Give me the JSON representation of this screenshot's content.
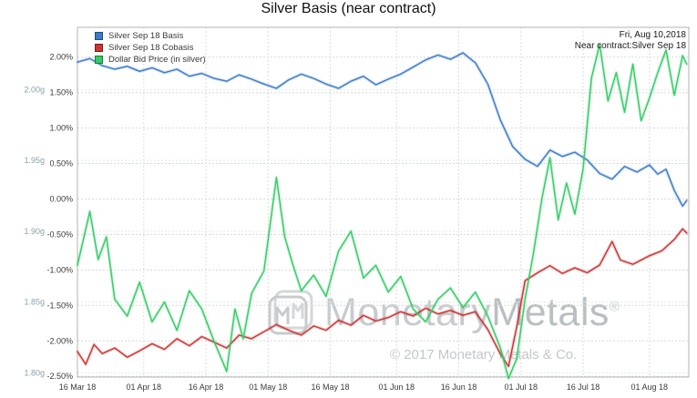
{
  "title": "Silver Basis (near contract)",
  "header": {
    "date": "Fri, Aug 10,2018",
    "contract": "Near contract:Silver Sep 18"
  },
  "watermark": {
    "brand_first": "Monetary",
    "brand_second": "Metals",
    "registered": "®",
    "copyright": "© 2017 Monetary Metals & Co."
  },
  "chart_data": {
    "type": "line",
    "title": "Silver Basis (near contract)",
    "x_unit": "days since 16 Mar 2018",
    "x_range": [
      0,
      147.5
    ],
    "grid": true,
    "legend_position": "top-left",
    "x_ticks": [
      {
        "day": 0,
        "label": "16 Mar 18"
      },
      {
        "day": 16,
        "label": "01 Apr 18"
      },
      {
        "day": 31,
        "label": "16 Apr 18"
      },
      {
        "day": 46,
        "label": "01 May 18"
      },
      {
        "day": 61,
        "label": "16 May 18"
      },
      {
        "day": 77,
        "label": "01 Jun 18"
      },
      {
        "day": 92,
        "label": "16 Jun 18"
      },
      {
        "day": 107,
        "label": "01 Jul 18"
      },
      {
        "day": 122,
        "label": "16 Jul 18"
      },
      {
        "day": 138,
        "label": "01 Aug 18"
      }
    ],
    "axes": {
      "percent": {
        "side": "left-inner",
        "format": "percent",
        "range": [
          -2.51,
          2.42
        ],
        "tick_values": [
          2.0,
          1.5,
          1.0,
          0.5,
          0.0,
          -0.5,
          -1.0,
          -1.5,
          -2.0,
          -2.5
        ],
        "label_color": "#3a3a3a",
        "grid_color": "#d9d9d9"
      },
      "grams": {
        "side": "left-outer",
        "format": "g",
        "range": [
          1.797,
          2.044
        ],
        "tick_values": [
          2.0,
          1.95,
          1.9,
          1.85,
          1.8
        ],
        "label_color": "#8aa2a6",
        "grid_color": "#e3e9e9"
      }
    },
    "series": [
      {
        "name": "Silver Sep 18 Basis",
        "color": "#3b7cc9",
        "axis": "percent",
        "points": [
          [
            0,
            1.93
          ],
          [
            3,
            1.98
          ],
          [
            6,
            1.88
          ],
          [
            9,
            1.83
          ],
          [
            12,
            1.87
          ],
          [
            15,
            1.8
          ],
          [
            18,
            1.85
          ],
          [
            21,
            1.78
          ],
          [
            24,
            1.83
          ],
          [
            27,
            1.73
          ],
          [
            30,
            1.77
          ],
          [
            33,
            1.7
          ],
          [
            36,
            1.66
          ],
          [
            39,
            1.75
          ],
          [
            42,
            1.69
          ],
          [
            45,
            1.62
          ],
          [
            48,
            1.56
          ],
          [
            51,
            1.68
          ],
          [
            54,
            1.76
          ],
          [
            57,
            1.7
          ],
          [
            60,
            1.62
          ],
          [
            63,
            1.56
          ],
          [
            66,
            1.66
          ],
          [
            69,
            1.73
          ],
          [
            72,
            1.61
          ],
          [
            75,
            1.69
          ],
          [
            78,
            1.76
          ],
          [
            81,
            1.86
          ],
          [
            84,
            1.96
          ],
          [
            87,
            2.03
          ],
          [
            90,
            1.97
          ],
          [
            93,
            2.06
          ],
          [
            96,
            1.92
          ],
          [
            99,
            1.62
          ],
          [
            102,
            1.12
          ],
          [
            105,
            0.74
          ],
          [
            108,
            0.56
          ],
          [
            111,
            0.46
          ],
          [
            114,
            0.69
          ],
          [
            117,
            0.6
          ],
          [
            120,
            0.66
          ],
          [
            123,
            0.55
          ],
          [
            126,
            0.36
          ],
          [
            129,
            0.28
          ],
          [
            132,
            0.46
          ],
          [
            135,
            0.38
          ],
          [
            138,
            0.48
          ],
          [
            140,
            0.35
          ],
          [
            142,
            0.42
          ],
          [
            144,
            0.12
          ],
          [
            146,
            -0.1
          ],
          [
            147,
            -0.02
          ]
        ]
      },
      {
        "name": "Silver Sep 18 Cobasis",
        "color": "#cc3332",
        "axis": "percent",
        "points": [
          [
            0,
            -2.15
          ],
          [
            2,
            -2.33
          ],
          [
            4,
            -2.05
          ],
          [
            6,
            -2.18
          ],
          [
            9,
            -2.1
          ],
          [
            12,
            -2.23
          ],
          [
            15,
            -2.14
          ],
          [
            18,
            -2.04
          ],
          [
            21,
            -2.12
          ],
          [
            24,
            -1.97
          ],
          [
            27,
            -2.07
          ],
          [
            30,
            -1.94
          ],
          [
            33,
            -2.02
          ],
          [
            36,
            -2.1
          ],
          [
            39,
            -1.92
          ],
          [
            42,
            -1.97
          ],
          [
            45,
            -1.87
          ],
          [
            48,
            -1.77
          ],
          [
            51,
            -1.85
          ],
          [
            54,
            -1.92
          ],
          [
            57,
            -1.79
          ],
          [
            60,
            -1.85
          ],
          [
            63,
            -1.71
          ],
          [
            66,
            -1.78
          ],
          [
            69,
            -1.64
          ],
          [
            72,
            -1.72
          ],
          [
            75,
            -1.67
          ],
          [
            78,
            -1.59
          ],
          [
            81,
            -1.65
          ],
          [
            84,
            -1.54
          ],
          [
            87,
            -1.62
          ],
          [
            90,
            -1.57
          ],
          [
            93,
            -1.64
          ],
          [
            96,
            -1.59
          ],
          [
            99,
            -1.84
          ],
          [
            102,
            -2.18
          ],
          [
            104,
            -2.36
          ],
          [
            106,
            -1.8
          ],
          [
            108,
            -1.15
          ],
          [
            111,
            -1.04
          ],
          [
            114,
            -0.94
          ],
          [
            117,
            -1.05
          ],
          [
            120,
            -0.97
          ],
          [
            123,
            -1.04
          ],
          [
            126,
            -0.93
          ],
          [
            129,
            -0.6
          ],
          [
            131,
            -0.86
          ],
          [
            134,
            -0.92
          ],
          [
            138,
            -0.8
          ],
          [
            141,
            -0.73
          ],
          [
            144,
            -0.57
          ],
          [
            146,
            -0.42
          ],
          [
            147,
            -0.48
          ]
        ]
      },
      {
        "name": "Dollar Bid Price (in silver)",
        "color": "#33cc66",
        "axis": "grams",
        "points": [
          [
            0,
            1.876
          ],
          [
            3,
            1.914
          ],
          [
            5,
            1.88
          ],
          [
            7,
            1.896
          ],
          [
            9,
            1.852
          ],
          [
            12,
            1.84
          ],
          [
            15,
            1.864
          ],
          [
            18,
            1.836
          ],
          [
            21,
            1.85
          ],
          [
            24,
            1.83
          ],
          [
            27,
            1.858
          ],
          [
            30,
            1.845
          ],
          [
            33,
            1.822
          ],
          [
            36,
            1.801
          ],
          [
            38,
            1.845
          ],
          [
            40,
            1.824
          ],
          [
            42,
            1.856
          ],
          [
            45,
            1.872
          ],
          [
            48,
            1.938
          ],
          [
            50,
            1.896
          ],
          [
            52,
            1.876
          ],
          [
            54,
            1.858
          ],
          [
            57,
            1.869
          ],
          [
            60,
            1.854
          ],
          [
            63,
            1.886
          ],
          [
            66,
            1.9
          ],
          [
            69,
            1.867
          ],
          [
            72,
            1.876
          ],
          [
            75,
            1.857
          ],
          [
            78,
            1.868
          ],
          [
            81,
            1.845
          ],
          [
            84,
            1.836
          ],
          [
            87,
            1.852
          ],
          [
            90,
            1.86
          ],
          [
            93,
            1.846
          ],
          [
            96,
            1.857
          ],
          [
            99,
            1.84
          ],
          [
            102,
            1.818
          ],
          [
            104,
            1.796
          ],
          [
            106,
            1.81
          ],
          [
            108,
            1.852
          ],
          [
            110,
            1.884
          ],
          [
            112,
            1.922
          ],
          [
            114,
            1.952
          ],
          [
            116,
            1.908
          ],
          [
            118,
            1.934
          ],
          [
            120,
            1.912
          ],
          [
            122,
            1.944
          ],
          [
            124,
            2.008
          ],
          [
            126,
            2.032
          ],
          [
            128,
            1.992
          ],
          [
            130,
            2.012
          ],
          [
            132,
            1.984
          ],
          [
            134,
            2.018
          ],
          [
            136,
            1.978
          ],
          [
            138,
            1.994
          ],
          [
            140,
            2.012
          ],
          [
            142,
            2.028
          ],
          [
            144,
            1.996
          ],
          [
            146,
            2.024
          ],
          [
            147,
            2.018
          ]
        ]
      }
    ]
  }
}
